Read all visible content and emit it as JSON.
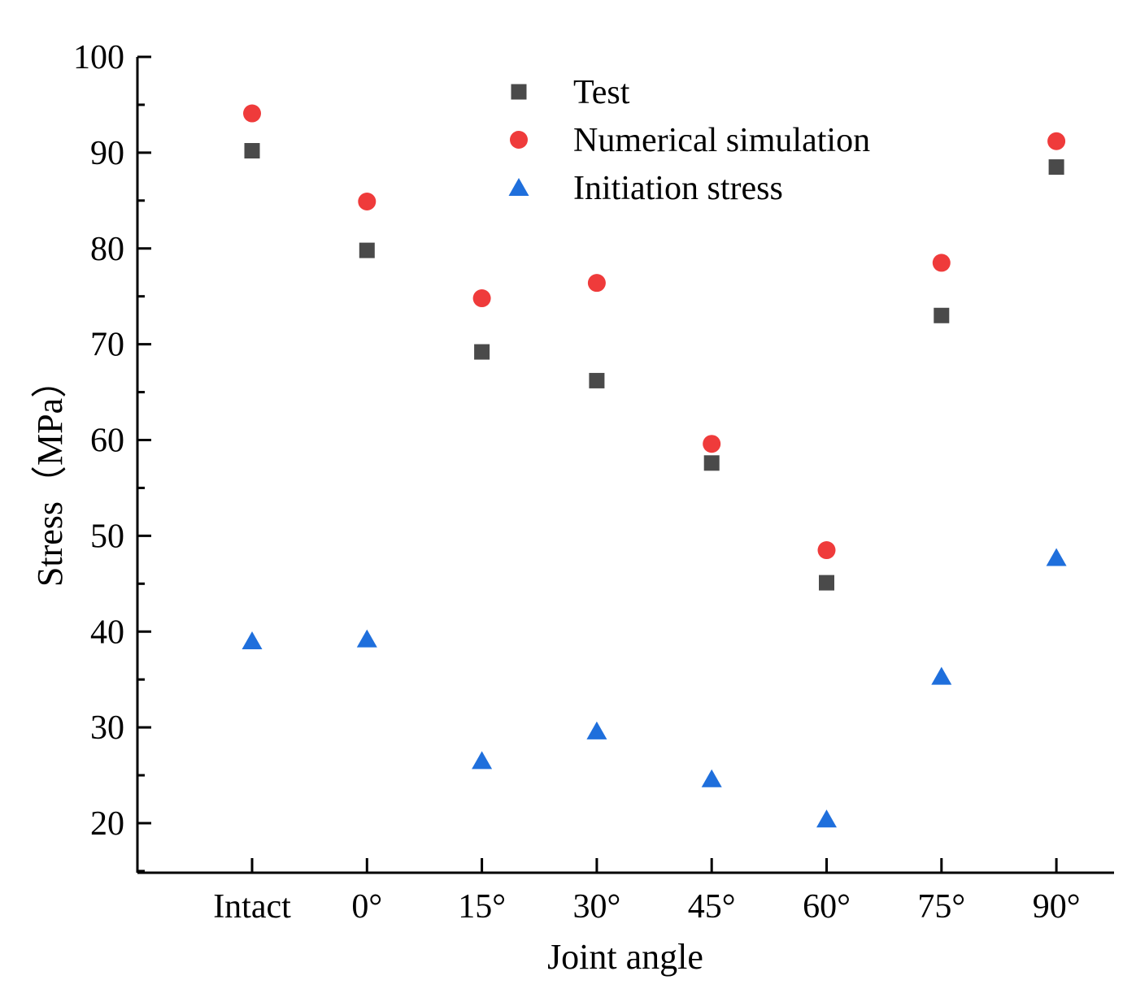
{
  "chart_data": {
    "type": "scatter",
    "title": "",
    "xlabel": "Joint angle",
    "ylabel": "Stress（MPa）",
    "categories": [
      "Intact",
      "0°",
      "15°",
      "30°",
      "45°",
      "60°",
      "75°",
      "90°"
    ],
    "ylim": [
      15,
      100
    ],
    "yticks": [
      20,
      30,
      40,
      50,
      60,
      70,
      80,
      90,
      100
    ],
    "ytick_labels": [
      "20",
      "30",
      "40",
      "50",
      "60",
      "70",
      "80",
      "90",
      "100"
    ],
    "legend_position": "top-center",
    "grid": false,
    "series": [
      {
        "name": "Test",
        "marker": "square",
        "color": "#4a4a4a",
        "values": [
          90.2,
          79.8,
          69.2,
          66.2,
          57.6,
          45.1,
          73.0,
          88.5
        ]
      },
      {
        "name": "Numerical simulation",
        "marker": "circle",
        "color": "#ef3b3b",
        "values": [
          94.1,
          84.9,
          74.8,
          76.4,
          59.6,
          48.5,
          78.5,
          91.2
        ]
      },
      {
        "name": "Initiation stress",
        "marker": "triangle",
        "color": "#1f6fdc",
        "values": [
          39.0,
          39.2,
          26.5,
          29.6,
          24.6,
          20.4,
          35.3,
          47.7
        ]
      }
    ]
  }
}
